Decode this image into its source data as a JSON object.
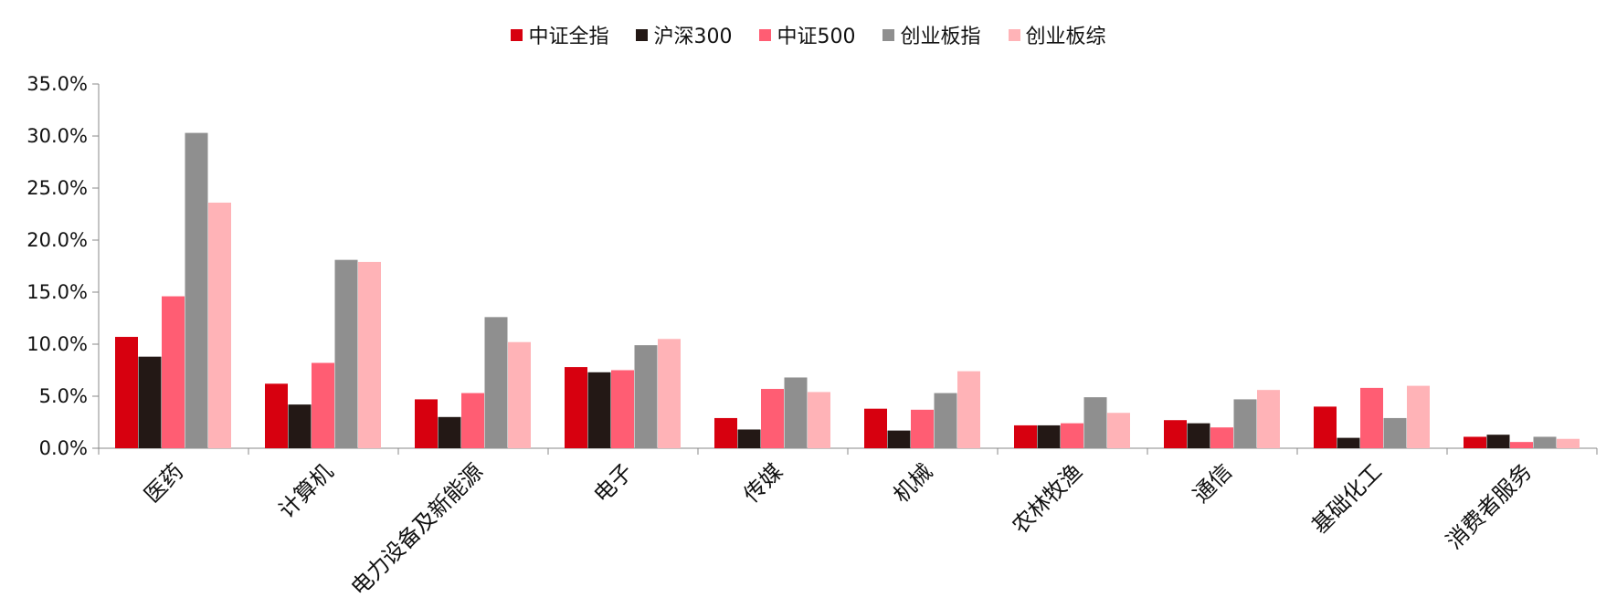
{
  "chart_data": {
    "type": "bar",
    "categories": [
      "医药",
      "计算机",
      "电力设备及新能源",
      "电子",
      "传媒",
      "机械",
      "农林牧渔",
      "通信",
      "基础化工",
      "消费者服务"
    ],
    "series": [
      {
        "name": "中证全指",
        "color": "#d7000f",
        "values": [
          10.7,
          6.2,
          4.7,
          7.8,
          2.9,
          3.8,
          2.2,
          2.7,
          4.0,
          1.1
        ]
      },
      {
        "name": "沪深300",
        "color": "#231815",
        "values": [
          8.8,
          4.2,
          3.0,
          7.3,
          1.8,
          1.7,
          2.2,
          2.4,
          1.0,
          1.3
        ]
      },
      {
        "name": "中证500",
        "color": "#ff5d73",
        "values": [
          14.6,
          8.2,
          5.3,
          7.5,
          5.7,
          3.7,
          2.4,
          2.0,
          5.8,
          0.6
        ]
      },
      {
        "name": "创业板指",
        "color": "#8f8f8f",
        "values": [
          30.3,
          18.1,
          12.6,
          9.9,
          6.8,
          5.3,
          4.9,
          4.7,
          2.9,
          1.1
        ]
      },
      {
        "name": "创业板综",
        "color": "#ffb3b7",
        "values": [
          23.6,
          17.9,
          10.2,
          10.5,
          5.4,
          7.4,
          3.4,
          5.6,
          6.0,
          0.9
        ]
      }
    ],
    "ylim": [
      0,
      35
    ],
    "yticks": [
      "0.0%",
      "5.0%",
      "10.0%",
      "15.0%",
      "20.0%",
      "25.0%",
      "30.0%",
      "35.0%"
    ],
    "grid": false,
    "legend_position": "top-center"
  }
}
